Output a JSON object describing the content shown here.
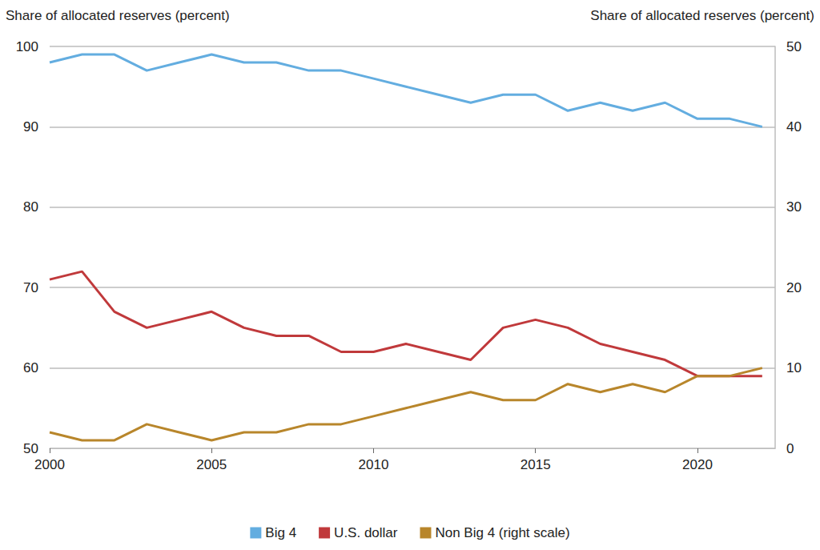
{
  "chart_data": {
    "type": "line",
    "x": [
      2000,
      2001,
      2002,
      2003,
      2004,
      2005,
      2006,
      2007,
      2008,
      2009,
      2010,
      2011,
      2012,
      2013,
      2014,
      2015,
      2016,
      2017,
      2018,
      2019,
      2020,
      2021,
      2022
    ],
    "xlim": [
      2000,
      2022.4
    ],
    "xticks": [
      2000,
      2005,
      2010,
      2015,
      2020
    ],
    "ylabel": "Share of allocated reserves (percent)",
    "y2label": "Share of allocated reserves (percent)",
    "ylim": [
      50,
      100
    ],
    "yticks": [
      50,
      60,
      70,
      80,
      90,
      100
    ],
    "y2lim": [
      0,
      50
    ],
    "y2ticks": [
      0,
      10,
      20,
      30,
      40,
      50
    ],
    "grid": true,
    "legend": "bottom",
    "series": [
      {
        "name": "Big 4",
        "color": "#63ade0",
        "values": [
          98,
          99,
          99,
          97,
          98,
          99,
          98,
          98,
          97,
          97,
          96,
          95,
          94,
          93,
          94,
          94,
          92,
          93,
          92,
          93,
          91,
          91,
          90
        ]
      },
      {
        "name": "U.S. dollar",
        "color": "#c0393b",
        "values": [
          71,
          72,
          67,
          65,
          66,
          67,
          65,
          64,
          64,
          62,
          62,
          63,
          62,
          61,
          65,
          66,
          65,
          63,
          62,
          61,
          59,
          59,
          59
        ]
      },
      {
        "name": "Non Big 4 (right scale)",
        "color": "#b8862b",
        "axis": "y2",
        "values": [
          2,
          1,
          1,
          3,
          2,
          1,
          2,
          2,
          3,
          3,
          4,
          5,
          6,
          7,
          6,
          6,
          8,
          7,
          8,
          7,
          9,
          9,
          10
        ]
      }
    ]
  }
}
